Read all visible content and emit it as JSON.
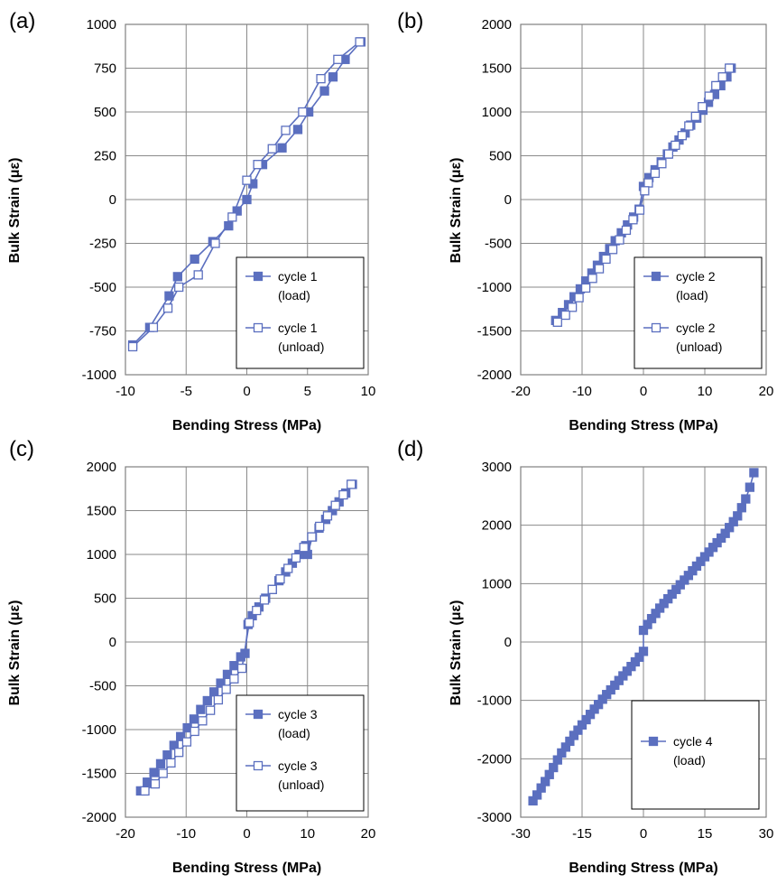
{
  "colors": {
    "series": "#5b6fbf",
    "grid": "#8a8a8a",
    "frame": "#808080"
  },
  "chart_data": [
    {
      "panel_label": "(a)",
      "type": "line",
      "xlabel": "Bending Stress (MPa)",
      "ylabel": "Bulk Strain (με)",
      "xlim": [
        -10,
        10
      ],
      "ylim": [
        -1000,
        1000
      ],
      "xticks": [
        -10,
        -5,
        0,
        5,
        10
      ],
      "yticks": [
        -1000,
        -750,
        -500,
        -250,
        0,
        250,
        500,
        750,
        1000
      ],
      "grid": true,
      "legend_position": "bottom-right",
      "series": [
        {
          "name": "cycle 1",
          "name_line2": "(load)",
          "marker": "filled-square",
          "x": [
            -9.4,
            -8.0,
            -6.4,
            -5.7,
            -4.3,
            -2.8,
            -1.5,
            -0.8,
            0,
            0.5,
            1.3,
            2.9,
            4.2,
            5.1,
            6.4,
            7.1,
            8.1,
            9.4
          ],
          "y": [
            -830,
            -730,
            -550,
            -440,
            -340,
            -240,
            -150,
            -65,
            0,
            90,
            200,
            295,
            400,
            500,
            620,
            700,
            800,
            900
          ]
        },
        {
          "name": "cycle 1",
          "name_line2": "(unload)",
          "marker": "open-square",
          "x": [
            9.3,
            7.5,
            6.1,
            4.6,
            3.2,
            2.1,
            0.9,
            0,
            -1.2,
            -2.6,
            -4.0,
            -5.6,
            -6.5,
            -7.7,
            -9.4
          ],
          "y": [
            900,
            800,
            690,
            500,
            395,
            290,
            200,
            110,
            -100,
            -250,
            -430,
            -500,
            -620,
            -730,
            -840
          ]
        }
      ]
    },
    {
      "panel_label": "(b)",
      "type": "line",
      "xlabel": "Bending Stress (MPa)",
      "ylabel": "Bulk Strain (με)",
      "xlim": [
        -20,
        20
      ],
      "ylim": [
        -2000,
        2000
      ],
      "xticks": [
        -20,
        -10,
        0,
        10,
        20
      ],
      "yticks": [
        -2000,
        -1500,
        -1000,
        -500,
        0,
        500,
        1000,
        1500,
        2000
      ],
      "grid": true,
      "legend_position": "bottom-right",
      "series": [
        {
          "name": "cycle 2",
          "name_line2": "(load)",
          "marker": "filled-square",
          "x": [
            -14.3,
            -13.2,
            -12.2,
            -11.3,
            -10.3,
            -9.4,
            -8.4,
            -7.5,
            -6.5,
            -5.5,
            -4.6,
            -3.6,
            -2.6,
            -1.6,
            -0.7,
            0,
            0.9,
            1.9,
            2.9,
            3.9,
            4.8,
            5.8,
            6.8,
            7.7,
            8.7,
            9.7,
            10.6,
            11.6,
            12.6,
            13.6,
            14.3
          ],
          "y": [
            -1380,
            -1290,
            -1200,
            -1110,
            -1020,
            -930,
            -840,
            -750,
            -650,
            -560,
            -470,
            -380,
            -290,
            -200,
            -110,
            150,
            250,
            340,
            430,
            520,
            600,
            680,
            760,
            850,
            930,
            1020,
            1110,
            1200,
            1300,
            1400,
            1500
          ]
        },
        {
          "name": "cycle 2",
          "name_line2": "(unload)",
          "marker": "open-square",
          "x": [
            14.0,
            12.9,
            11.8,
            10.7,
            9.6,
            8.5,
            7.4,
            6.3,
            5.2,
            4.1,
            3.0,
            1.9,
            0.8,
            0.2,
            -0.6,
            -1.7,
            -2.8,
            -3.9,
            -5.0,
            -6.1,
            -7.2,
            -8.3,
            -9.4,
            -10.5,
            -11.6,
            -12.7,
            -14.0
          ],
          "y": [
            1500,
            1400,
            1300,
            1180,
            1060,
            950,
            840,
            730,
            620,
            520,
            410,
            300,
            190,
            100,
            -120,
            -230,
            -350,
            -460,
            -570,
            -680,
            -790,
            -900,
            -1010,
            -1120,
            -1230,
            -1320,
            -1400
          ]
        }
      ]
    },
    {
      "panel_label": "(c)",
      "type": "line",
      "xlabel": "Bending Stress (MPa)",
      "ylabel": "Bulk Strain (με)",
      "xlim": [
        -20,
        20
      ],
      "ylim": [
        -2000,
        2000
      ],
      "xticks": [
        -20,
        -10,
        0,
        10,
        20
      ],
      "yticks": [
        -2000,
        -1500,
        -1000,
        -500,
        0,
        500,
        1000,
        1500,
        2000
      ],
      "grid": true,
      "legend_position": "bottom-right",
      "series": [
        {
          "name": "cycle 3",
          "name_line2": "(load)",
          "marker": "filled-square",
          "x": [
            -17.5,
            -16.4,
            -15.3,
            -14.2,
            -13.1,
            -12.0,
            -10.9,
            -9.8,
            -8.7,
            -7.6,
            -6.5,
            -5.4,
            -4.3,
            -3.2,
            -2.1,
            -1.0,
            -0.3,
            0.2,
            0.9,
            2.0,
            3.1,
            4.2,
            5.3,
            6.4,
            7.5,
            8.6,
            9.7,
            10.0,
            10.8,
            11.9,
            13.0,
            14.1,
            15.2,
            16.3,
            17.4
          ],
          "y": [
            -1700,
            -1600,
            -1490,
            -1390,
            -1290,
            -1180,
            -1080,
            -980,
            -880,
            -770,
            -670,
            -570,
            -470,
            -370,
            -270,
            -170,
            -130,
            200,
            300,
            400,
            500,
            600,
            700,
            800,
            900,
            1000,
            1100,
            1000,
            1200,
            1300,
            1400,
            1500,
            1600,
            1700,
            1800
          ]
        },
        {
          "name": "cycle 3",
          "name_line2": "(unload)",
          "marker": "open-square",
          "x": [
            17.2,
            15.9,
            14.6,
            13.3,
            12.0,
            10.7,
            9.4,
            8.1,
            6.8,
            5.5,
            4.2,
            2.9,
            1.6,
            0.4,
            -0.8,
            -2.1,
            -3.4,
            -4.7,
            -6.0,
            -7.3,
            -8.6,
            -9.9,
            -11.2,
            -12.5,
            -13.8,
            -15.1,
            -16.8
          ],
          "y": [
            1800,
            1680,
            1560,
            1440,
            1320,
            1200,
            1080,
            960,
            840,
            720,
            600,
            480,
            360,
            220,
            -300,
            -420,
            -540,
            -660,
            -780,
            -900,
            -1020,
            -1140,
            -1260,
            -1380,
            -1500,
            -1620,
            -1700
          ]
        }
      ]
    },
    {
      "panel_label": "(d)",
      "type": "line",
      "xlabel": "Bending Stress (MPa)",
      "ylabel": "Bulk Strain (με)",
      "xlim": [
        -30,
        30
      ],
      "ylim": [
        -3000,
        3000
      ],
      "xticks": [
        -30,
        -15,
        0,
        15,
        30
      ],
      "yticks": [
        -3000,
        -2000,
        -1000,
        0,
        1000,
        2000,
        3000
      ],
      "grid": true,
      "legend_position": "bottom-right",
      "series": [
        {
          "name": "cycle 4",
          "name_line2": "(load)",
          "marker": "filled-square",
          "x": [
            -27,
            -26,
            -25,
            -24,
            -23,
            -22,
            -21,
            -20,
            -19,
            -18,
            -17,
            -16,
            -15,
            -14,
            -13,
            -12,
            -11,
            -10,
            -9,
            -8,
            -7,
            -6,
            -5,
            -4,
            -3,
            -2,
            -1,
            0,
            0,
            1,
            2,
            3,
            4,
            5,
            6,
            7,
            8,
            9,
            10,
            11,
            12,
            13,
            14,
            15,
            16,
            17,
            18,
            19,
            20,
            21,
            22,
            23,
            24,
            25,
            26,
            27
          ],
          "y": [
            -2720,
            -2620,
            -2500,
            -2390,
            -2270,
            -2150,
            -2020,
            -1900,
            -1800,
            -1700,
            -1600,
            -1510,
            -1420,
            -1330,
            -1240,
            -1150,
            -1070,
            -980,
            -900,
            -820,
            -740,
            -660,
            -580,
            -500,
            -420,
            -340,
            -260,
            -160,
            200,
            300,
            400,
            490,
            580,
            660,
            740,
            820,
            900,
            980,
            1060,
            1140,
            1220,
            1300,
            1380,
            1460,
            1540,
            1620,
            1700,
            1780,
            1860,
            1960,
            2060,
            2160,
            2300,
            2450,
            2650,
            2900
          ]
        }
      ]
    }
  ]
}
